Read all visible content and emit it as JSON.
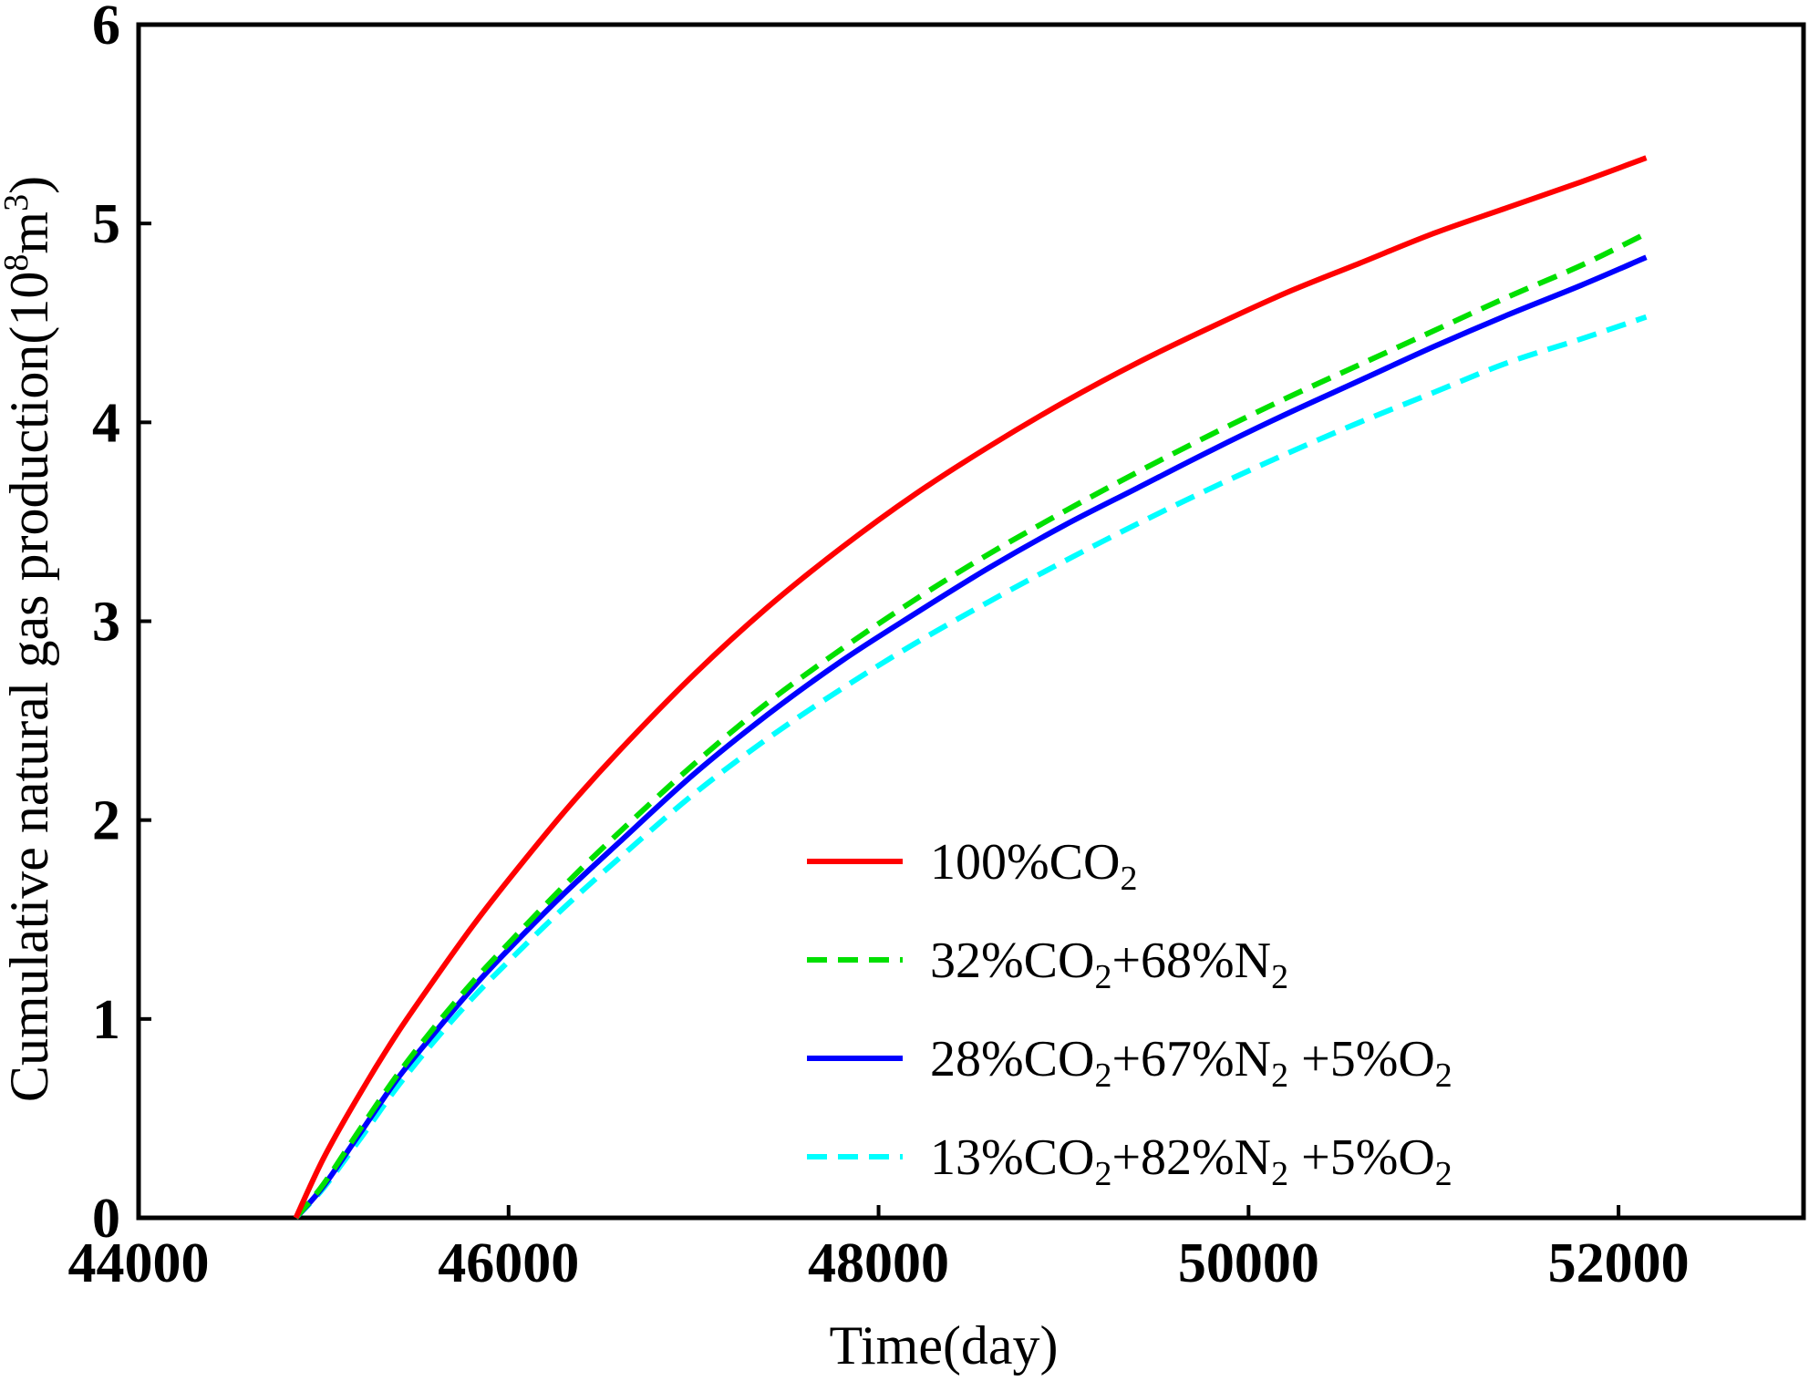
{
  "chart_data": {
    "type": "line",
    "xlabel": "Time(day)",
    "ylabel": {
      "prefix": "Cumulative natural gas production(10",
      "sup1": "8",
      "mid": "m",
      "sup2": "3",
      "suffix": ")"
    },
    "xlim": [
      44000,
      53000
    ],
    "ylim": [
      0,
      6
    ],
    "xticks": [
      44000,
      46000,
      48000,
      50000,
      52000
    ],
    "yticks": [
      0,
      1,
      2,
      3,
      4,
      5,
      6
    ],
    "xtick_labels": [
      "44000",
      "46000",
      "48000",
      "50000",
      "52000"
    ],
    "ytick_labels": [
      "0",
      "1",
      "2",
      "3",
      "4",
      "5",
      "6"
    ],
    "grid": false,
    "legend_position": "lower-right",
    "series": [
      {
        "name": "100%CO2",
        "label_parts": [
          {
            "t": "100%CO"
          },
          {
            "t": "2",
            "sub": true
          }
        ],
        "color": "#ff0000",
        "dash": "solid",
        "x": [
          44850,
          45000,
          45200,
          45400,
          45600,
          45800,
          46000,
          46300,
          46600,
          47000,
          47400,
          47800,
          48200,
          48600,
          49000,
          49400,
          49800,
          50200,
          50600,
          51000,
          51400,
          51800,
          52150
        ],
        "y": [
          0,
          0.3,
          0.63,
          0.93,
          1.2,
          1.46,
          1.7,
          2.04,
          2.35,
          2.73,
          3.07,
          3.37,
          3.64,
          3.88,
          4.1,
          4.3,
          4.48,
          4.65,
          4.8,
          4.95,
          5.08,
          5.21,
          5.33
        ]
      },
      {
        "name": "32%CO2+68%N2",
        "label_parts": [
          {
            "t": "32%CO"
          },
          {
            "t": "2",
            "sub": true
          },
          {
            "t": "+68%N"
          },
          {
            "t": "2",
            "sub": true
          }
        ],
        "color": "#00e000",
        "dash": "dashed",
        "x": [
          44850,
          45000,
          45200,
          45400,
          45600,
          45800,
          46000,
          46300,
          46600,
          47000,
          47400,
          47800,
          48200,
          48600,
          49000,
          49400,
          49800,
          50200,
          50600,
          51000,
          51400,
          51800,
          52150
        ],
        "y": [
          0,
          0.17,
          0.45,
          0.72,
          0.96,
          1.18,
          1.38,
          1.67,
          1.94,
          2.28,
          2.59,
          2.86,
          3.11,
          3.34,
          3.55,
          3.75,
          3.94,
          4.12,
          4.29,
          4.46,
          4.63,
          4.79,
          4.95
        ]
      },
      {
        "name": "28%CO2+67%N2 +5%O2",
        "label_parts": [
          {
            "t": "28%CO"
          },
          {
            "t": "2",
            "sub": true
          },
          {
            "t": "+67%N"
          },
          {
            "t": "2",
            "sub": true
          },
          {
            "t": " +5%O"
          },
          {
            "t": "2",
            "sub": true
          }
        ],
        "color": "#0000ff",
        "dash": "solid",
        "x": [
          44850,
          45000,
          45200,
          45400,
          45600,
          45800,
          46000,
          46300,
          46600,
          47000,
          47400,
          47800,
          48200,
          48600,
          49000,
          49400,
          49800,
          50200,
          50600,
          51000,
          51400,
          51800,
          52150
        ],
        "y": [
          0,
          0.16,
          0.43,
          0.7,
          0.93,
          1.15,
          1.35,
          1.63,
          1.89,
          2.23,
          2.53,
          2.8,
          3.04,
          3.27,
          3.48,
          3.67,
          3.86,
          4.04,
          4.21,
          4.38,
          4.54,
          4.69,
          4.83
        ]
      },
      {
        "name": "13%CO2+82%N2 +5%O2",
        "label_parts": [
          {
            "t": "13%CO"
          },
          {
            "t": "2",
            "sub": true
          },
          {
            "t": "+82%N"
          },
          {
            "t": "2",
            "sub": true
          },
          {
            "t": " +5%O"
          },
          {
            "t": "2",
            "sub": true
          }
        ],
        "color": "#00ffff",
        "dash": "dashed",
        "x": [
          44850,
          45000,
          45200,
          45400,
          45600,
          45800,
          46000,
          46300,
          46600,
          47000,
          47400,
          47800,
          48200,
          48600,
          49000,
          49400,
          49800,
          50200,
          50600,
          51000,
          51400,
          51800,
          52150
        ],
        "y": [
          0,
          0.15,
          0.4,
          0.66,
          0.89,
          1.1,
          1.29,
          1.56,
          1.81,
          2.13,
          2.41,
          2.66,
          2.89,
          3.1,
          3.3,
          3.49,
          3.67,
          3.84,
          4.0,
          4.15,
          4.3,
          4.42,
          4.53
        ]
      }
    ]
  }
}
